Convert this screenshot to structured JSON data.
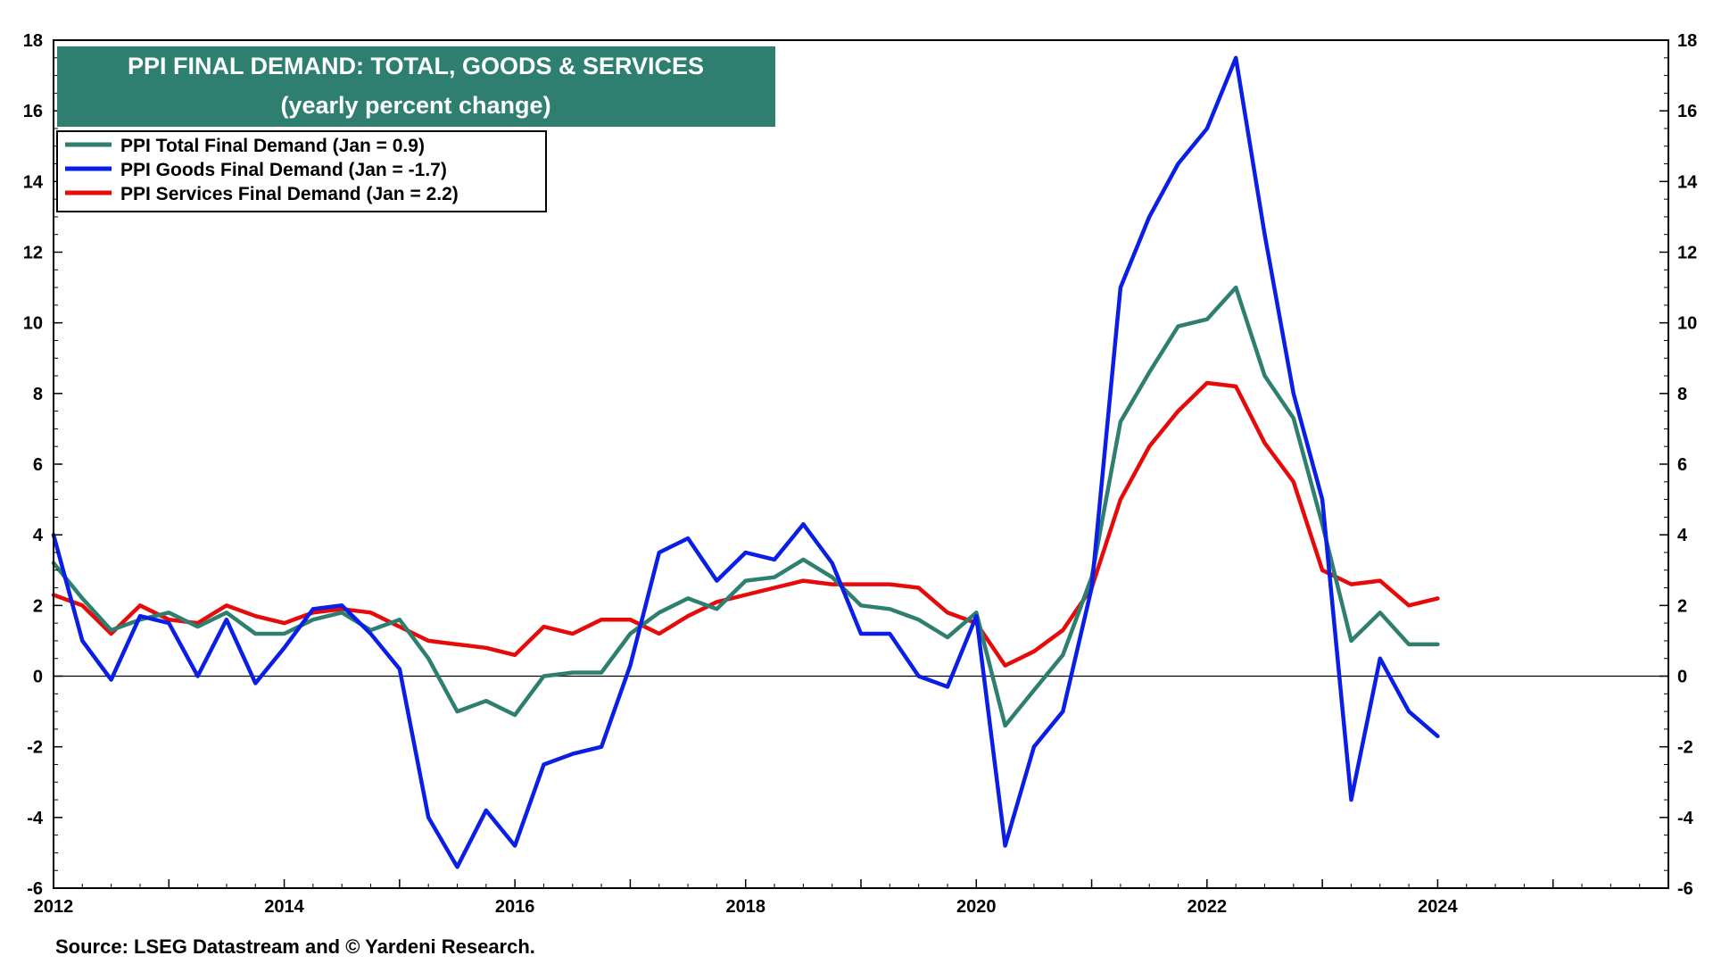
{
  "chart_data": {
    "type": "line",
    "title": "PPI FINAL DEMAND: TOTAL, GOODS & SERVICES",
    "subtitle": "(yearly percent change)",
    "source": "Source: LSEG Datastream and © Yardeni Research.",
    "x_start": 2012,
    "x_step_months": 3,
    "xlim": [
      2012,
      2026
    ],
    "x_ticks": [
      "2012",
      "2014",
      "2016",
      "2018",
      "2020",
      "2022",
      "2024"
    ],
    "ylim": [
      -6,
      18
    ],
    "y_ticks": [
      "-6",
      "-4",
      "-2",
      "0",
      "2",
      "4",
      "6",
      "8",
      "10",
      "12",
      "14",
      "16",
      "18"
    ],
    "legend_position": "top-left",
    "series": [
      {
        "name": "PPI Total Final Demand (Jan = 0.9)",
        "color": "#2e7f6f",
        "values": [
          3.2,
          2.2,
          1.3,
          1.6,
          1.8,
          1.4,
          1.8,
          1.2,
          1.2,
          1.6,
          1.8,
          1.3,
          1.6,
          0.5,
          -1.0,
          -0.7,
          -1.1,
          0.0,
          0.1,
          0.1,
          1.2,
          1.8,
          2.2,
          1.9,
          2.7,
          2.8,
          3.3,
          2.8,
          2.0,
          1.9,
          1.6,
          1.1,
          1.8,
          -1.4,
          -0.4,
          0.6,
          2.8,
          7.2,
          8.6,
          9.9,
          10.1,
          11.0,
          8.5,
          7.3,
          4.3,
          1.0,
          1.8,
          0.9,
          0.9
        ]
      },
      {
        "name": "PPI Goods Final Demand (Jan = -1.7)",
        "color": "#0a1ee6",
        "values": [
          4.0,
          1.0,
          -0.1,
          1.7,
          1.5,
          0.0,
          1.6,
          -0.2,
          0.8,
          1.9,
          2.0,
          1.2,
          0.2,
          -4.0,
          -5.4,
          -3.8,
          -4.8,
          -2.5,
          -2.2,
          -2.0,
          0.3,
          3.5,
          3.9,
          2.7,
          3.5,
          3.3,
          4.3,
          3.2,
          1.2,
          1.2,
          0.0,
          -0.3,
          1.7,
          -4.8,
          -2.0,
          -1.0,
          2.5,
          11.0,
          13.0,
          14.5,
          15.5,
          17.5,
          12.5,
          8.0,
          5.0,
          -3.5,
          0.5,
          -1.0,
          -1.7
        ]
      },
      {
        "name": "PPI Services Final Demand (Jan = 2.2)",
        "color": "#e60a0a",
        "values": [
          2.3,
          2.0,
          1.2,
          2.0,
          1.6,
          1.5,
          2.0,
          1.7,
          1.5,
          1.8,
          1.9,
          1.8,
          1.4,
          1.0,
          0.9,
          0.8,
          0.6,
          1.4,
          1.2,
          1.6,
          1.6,
          1.2,
          1.7,
          2.1,
          2.3,
          2.5,
          2.7,
          2.6,
          2.6,
          2.6,
          2.5,
          1.8,
          1.5,
          0.3,
          0.7,
          1.3,
          2.5,
          5.0,
          6.5,
          7.5,
          8.3,
          8.2,
          6.6,
          5.5,
          3.0,
          2.6,
          2.7,
          2.0,
          2.2
        ]
      }
    ]
  }
}
